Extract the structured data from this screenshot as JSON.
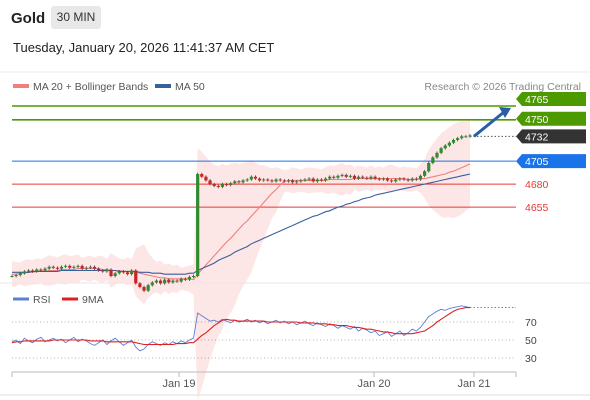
{
  "header": {
    "symbol": "Gold",
    "timeframe": "30 MIN"
  },
  "timestamp": "Tuesday, January 20, 2026 11:41:37 AM CET",
  "legend": {
    "items": [
      "MA 20 + Bollinger Bands",
      "MA 50"
    ],
    "source": "Research © 2026 Trading Central"
  },
  "colors": {
    "resistance": "#4c9900",
    "pivot": "#1a73e8",
    "support": "#e53935",
    "current": "#333333",
    "ma20": "#f08080",
    "ma50": "#3a5f9e",
    "band": "#fde0e0",
    "rsi": "#5b7fd6",
    "rsi_ma": "#e02020",
    "candle_up": "#2e8b2e",
    "candle_down": "#cc2222"
  },
  "chart_data": [
    {
      "type": "candlestick",
      "x_ticks": [
        "Jan 19",
        "Jan 20",
        "Jan 21"
      ],
      "y_range": [
        4560,
        4780
      ],
      "levels": [
        {
          "value": 4765,
          "label": "4765",
          "kind": "resistance"
        },
        {
          "value": 4750,
          "label": "4750",
          "kind": "resistance"
        },
        {
          "value": 4732,
          "label": "4732",
          "kind": "current"
        },
        {
          "value": 4705,
          "label": "4705",
          "kind": "pivot"
        },
        {
          "value": 4680,
          "label": "4680",
          "kind": "support"
        },
        {
          "value": 4655,
          "label": "4655",
          "kind": "support"
        }
      ],
      "close": [
        4580,
        4581,
        4583,
        4585,
        4586,
        4585,
        4587,
        4586,
        4588,
        4590,
        4589,
        4588,
        4590,
        4591,
        4589,
        4590,
        4591,
        4588,
        4589,
        4590,
        4588,
        4586,
        4585,
        4587,
        4580,
        4583,
        4585,
        4584,
        4582,
        4586,
        4572,
        4568,
        4564,
        4570,
        4573,
        4575,
        4572,
        4576,
        4573,
        4575,
        4574,
        4577,
        4576,
        4579,
        4580,
        4691,
        4688,
        4684,
        4680,
        4678,
        4677,
        4680,
        4679,
        4681,
        4683,
        4682,
        4684,
        4685,
        4688,
        4686,
        4684,
        4685,
        4684,
        4683,
        4685,
        4684,
        4683,
        4684,
        4682,
        4683,
        4684,
        4685,
        4686,
        4683,
        4685,
        4684,
        4686,
        4688,
        4687,
        4689,
        4690,
        4688,
        4689,
        4686,
        4688,
        4687,
        4686,
        4688,
        4686,
        4685,
        4686,
        4684,
        4683,
        4685,
        4686,
        4685,
        4684,
        4686,
        4685,
        4689,
        4694,
        4703,
        4709,
        4714,
        4719,
        4722,
        4725,
        4728,
        4730,
        4732,
        4732,
        4733
      ],
      "ma20": [
        4582,
        4582,
        4583,
        4583,
        4584,
        4584,
        4585,
        4585,
        4585,
        4586,
        4586,
        4586,
        4587,
        4587,
        4587,
        4587,
        4588,
        4588,
        4588,
        4588,
        4588,
        4588,
        4587,
        4587,
        4586,
        4586,
        4586,
        4585,
        4585,
        4585,
        4584,
        4583,
        4582,
        4581,
        4580,
        4579,
        4578,
        4578,
        4577,
        4577,
        4577,
        4577,
        4577,
        4577,
        4576,
        4582,
        4587,
        4592,
        4597,
        4602,
        4607,
        4612,
        4617,
        4621,
        4626,
        4631,
        4636,
        4640,
        4645,
        4650,
        4655,
        4660,
        4665,
        4670,
        4674,
        4679,
        4683,
        4684,
        4684,
        4684,
        4684,
        4684,
        4684,
        4684,
        4684,
        4684,
        4684,
        4685,
        4685,
        4685,
        4685,
        4685,
        4685,
        4686,
        4686,
        4686,
        4686,
        4686,
        4686,
        4686,
        4686,
        4686,
        4686,
        4686,
        4686,
        4686,
        4685,
        4685,
        4685,
        4686,
        4686,
        4687,
        4688,
        4689,
        4690,
        4691,
        4693,
        4694,
        4696,
        4698,
        4700,
        4702
      ],
      "ma50": [
        4584,
        4584,
        4584,
        4584,
        4584,
        4585,
        4585,
        4585,
        4585,
        4585,
        4585,
        4585,
        4586,
        4586,
        4586,
        4586,
        4586,
        4586,
        4586,
        4586,
        4586,
        4586,
        4586,
        4586,
        4586,
        4586,
        4585,
        4585,
        4585,
        4585,
        4585,
        4584,
        4584,
        4584,
        4583,
        4583,
        4583,
        4582,
        4582,
        4582,
        4582,
        4582,
        4582,
        4583,
        4583,
        4586,
        4588,
        4590,
        4592,
        4594,
        4597,
        4599,
        4601,
        4603,
        4606,
        4608,
        4610,
        4612,
        4615,
        4617,
        4619,
        4621,
        4623,
        4625,
        4627,
        4629,
        4631,
        4633,
        4635,
        4637,
        4639,
        4641,
        4643,
        4645,
        4646,
        4648,
        4650,
        4651,
        4653,
        4655,
        4656,
        4658,
        4659,
        4661,
        4662,
        4664,
        4665,
        4666,
        4668,
        4669,
        4670,
        4671,
        4672,
        4673,
        4674,
        4675,
        4676,
        4677,
        4678,
        4679,
        4680,
        4681,
        4682,
        4683,
        4684,
        4685,
        4686,
        4687,
        4688,
        4689,
        4690,
        4691
      ],
      "arrow": {
        "from": 4732,
        "to": 4765
      }
    },
    {
      "type": "line",
      "legend": [
        "RSI",
        "9MA"
      ],
      "y_ticks": [
        70,
        50,
        30
      ],
      "y_range": [
        20,
        90
      ],
      "rsi": [
        48,
        50,
        46,
        52,
        49,
        47,
        51,
        53,
        48,
        50,
        52,
        49,
        51,
        47,
        50,
        53,
        48,
        51,
        49,
        46,
        44,
        47,
        50,
        45,
        49,
        52,
        48,
        44,
        47,
        50,
        42,
        38,
        40,
        45,
        48,
        46,
        44,
        47,
        45,
        48,
        46,
        49,
        47,
        50,
        52,
        80,
        77,
        74,
        71,
        72,
        70,
        73,
        71,
        69,
        72,
        70,
        71,
        73,
        70,
        72,
        69,
        71,
        68,
        70,
        72,
        69,
        71,
        68,
        70,
        67,
        69,
        71,
        68,
        66,
        69,
        67,
        65,
        68,
        66,
        63,
        66,
        64,
        62,
        65,
        60,
        63,
        61,
        58,
        60,
        55,
        57,
        59,
        54,
        57,
        60,
        55,
        58,
        62,
        60,
        64,
        70,
        76,
        79,
        82,
        84,
        83,
        85,
        86,
        87,
        88,
        87,
        86
      ],
      "rsi_ma": [
        47,
        48,
        48,
        49,
        49,
        49,
        49,
        49,
        49,
        49,
        50,
        50,
        50,
        50,
        50,
        50,
        50,
        50,
        50,
        49,
        49,
        49,
        49,
        48,
        48,
        48,
        48,
        48,
        48,
        48,
        47,
        46,
        45,
        45,
        45,
        45,
        45,
        45,
        45,
        45,
        46,
        46,
        46,
        47,
        47,
        51,
        55,
        58,
        62,
        66,
        69,
        72,
        73,
        72,
        72,
        71,
        71,
        71,
        71,
        71,
        71,
        71,
        70,
        70,
        70,
        70,
        70,
        70,
        70,
        70,
        69,
        69,
        69,
        69,
        68,
        68,
        68,
        67,
        67,
        66,
        66,
        66,
        65,
        64,
        64,
        63,
        62,
        62,
        61,
        60,
        59,
        59,
        58,
        57,
        57,
        57,
        57,
        57,
        58,
        59,
        60,
        63,
        66,
        70,
        73,
        76,
        79,
        82,
        84,
        85,
        86,
        86
      ]
    }
  ]
}
